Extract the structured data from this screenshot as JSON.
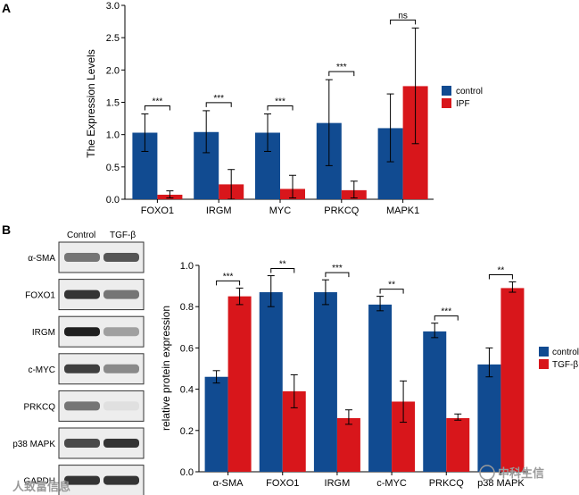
{
  "colors": {
    "control": "#114b91",
    "treated": "#d8161b",
    "axis": "#000000",
    "bracket": "#000000"
  },
  "chart_data": [
    {
      "type": "bar",
      "panel": "A",
      "ylabel": "The Expression Levels",
      "xlabel": "",
      "ylim": [
        0,
        3.0
      ],
      "yticks": [
        "0.0",
        "0.5",
        "1.0",
        "1.5",
        "2.0",
        "2.5",
        "3.0"
      ],
      "categories": [
        "FOXO1",
        "IRGM",
        "MYC",
        "PRKCQ",
        "MAPK1"
      ],
      "series": [
        {
          "name": "control",
          "values": [
            1.03,
            1.04,
            1.03,
            1.18,
            1.1
          ],
          "err_low": [
            0.74,
            0.72,
            0.74,
            0.52,
            0.58
          ],
          "err_high": [
            1.32,
            1.37,
            1.32,
            1.85,
            1.63
          ]
        },
        {
          "name": "IPF",
          "values": [
            0.07,
            0.23,
            0.16,
            0.14,
            1.75
          ],
          "err_low": [
            0.02,
            0.0,
            0.02,
            0.02,
            0.86
          ],
          "err_high": [
            0.13,
            0.46,
            0.37,
            0.28,
            2.65
          ]
        }
      ],
      "significance": [
        "***",
        "***",
        "***",
        "***",
        "ns"
      ],
      "legend": [
        "control",
        "IPF"
      ],
      "legend_position": "right"
    },
    {
      "type": "bar",
      "panel": "B",
      "ylabel": "relative protein expression",
      "xlabel": "",
      "ylim": [
        0,
        1.0
      ],
      "yticks": [
        "0.0",
        "0.2",
        "0.4",
        "0.6",
        "0.8",
        "1.0"
      ],
      "categories": [
        "α-SMA",
        "FOXO1",
        "IRGM",
        "c-MYC",
        "PRKCQ",
        "p38 MAPK"
      ],
      "series": [
        {
          "name": "control",
          "values": [
            0.46,
            0.87,
            0.87,
            0.81,
            0.68,
            0.52
          ],
          "err_low": [
            0.43,
            0.8,
            0.81,
            0.78,
            0.65,
            0.46
          ],
          "err_high": [
            0.49,
            0.95,
            0.93,
            0.85,
            0.72,
            0.6
          ]
        },
        {
          "name": "TGF-β",
          "values": [
            0.85,
            0.39,
            0.26,
            0.34,
            0.26,
            0.89
          ],
          "err_low": [
            0.81,
            0.31,
            0.23,
            0.24,
            0.25,
            0.87
          ],
          "err_high": [
            0.89,
            0.47,
            0.3,
            0.44,
            0.28,
            0.92
          ]
        }
      ],
      "significance": [
        "***",
        "**",
        "***",
        "**",
        "***",
        "**"
      ],
      "legend": [
        "control",
        "TGF-β"
      ],
      "legend_position": "right"
    }
  ],
  "panel_labels": {
    "a": "A",
    "b": "B"
  },
  "blot": {
    "columns": [
      "Control",
      "TGF-β"
    ],
    "rows": [
      "α-SMA",
      "FOXO1",
      "IRGM",
      "c-MYC",
      "PRKCQ",
      "p38 MAPK",
      "GAPDH"
    ],
    "intensity_control": [
      0.55,
      0.85,
      0.95,
      0.8,
      0.55,
      0.75,
      0.85
    ],
    "intensity_treated": [
      0.7,
      0.55,
      0.35,
      0.45,
      0.05,
      0.85,
      0.85
    ]
  },
  "watermark": {
    "left": "人致富信息",
    "right": "中科生信"
  }
}
